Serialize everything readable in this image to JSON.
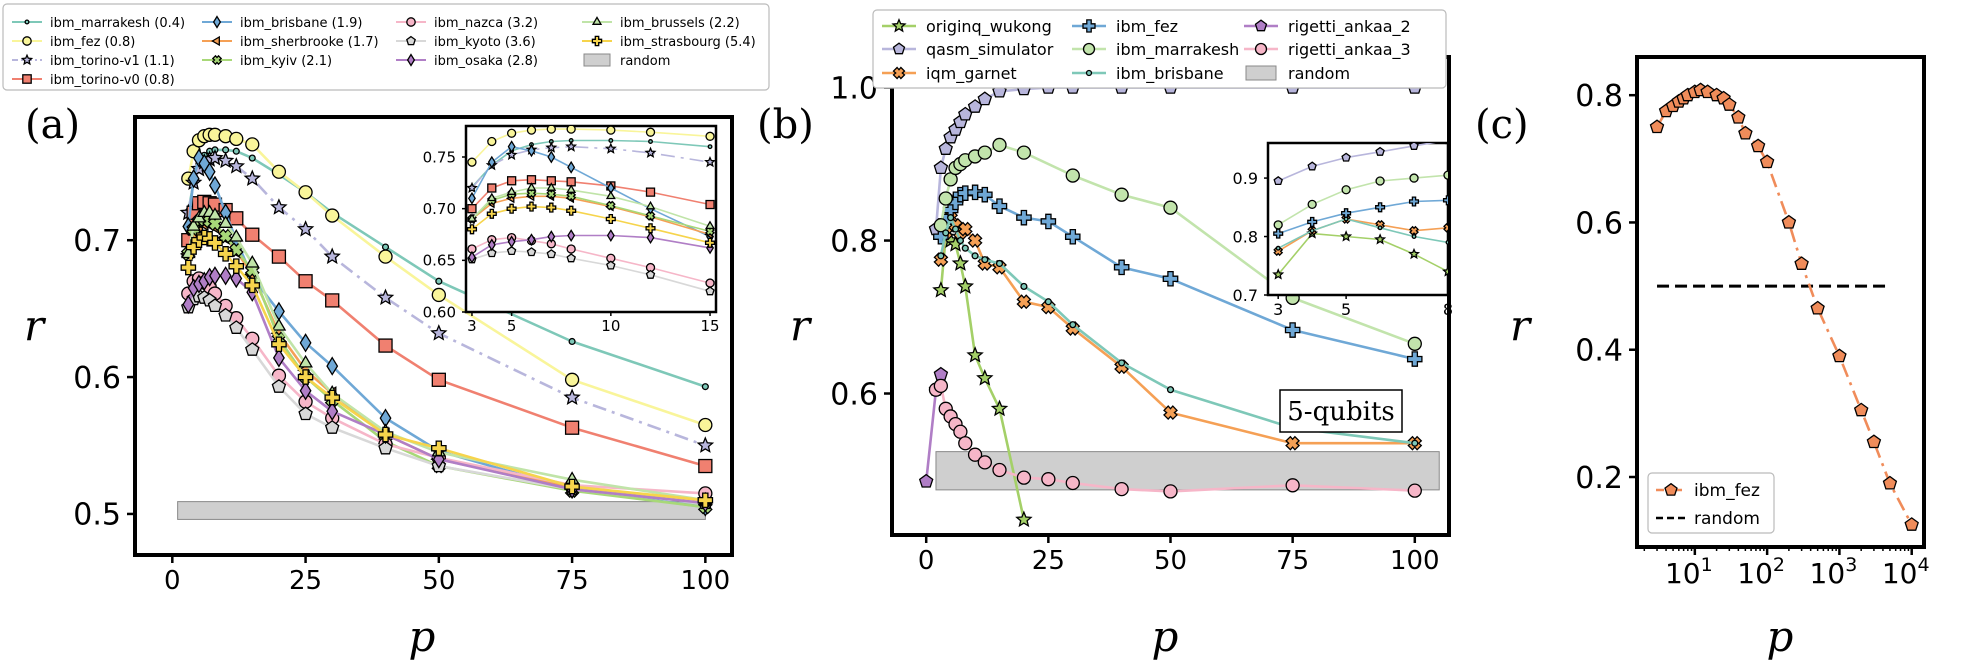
{
  "chart_data": [
    {
      "panel": "(a)",
      "type": "line",
      "xlabel": "p",
      "ylabel": "r",
      "xlim": [
        -7,
        105
      ],
      "ylim": [
        0.47,
        0.79
      ],
      "xticks": [
        "0",
        "25",
        "50",
        "75",
        "100"
      ],
      "yticks": [
        "0.5",
        "0.6",
        "0.7"
      ],
      "legend_position": "top-left (above panel)",
      "x": [
        3,
        4,
        5,
        6,
        7,
        8,
        10,
        12,
        15,
        20,
        25,
        30,
        40,
        50,
        75,
        100
      ],
      "series": [
        {
          "name": "ibm_marrakesh (0.4)",
          "color": "#7ec8b8",
          "marker": "smalldot",
          "dash": "solid",
          "values": [
            0.721,
            0.742,
            0.756,
            0.762,
            0.765,
            0.766,
            0.766,
            0.765,
            0.76,
            0.748,
            0.735,
            0.72,
            0.695,
            0.67,
            0.626,
            0.593
          ]
        },
        {
          "name": "ibm_fez (0.8)",
          "color": "#f9f59a",
          "marker": "circle",
          "dash": "solid",
          "values": [
            0.745,
            0.765,
            0.773,
            0.776,
            0.777,
            0.777,
            0.776,
            0.774,
            0.77,
            0.75,
            0.735,
            0.718,
            0.688,
            0.66,
            0.598,
            0.565
          ]
        },
        {
          "name": "ibm_torino-v1 (1.1)",
          "color": "#b8b6dc",
          "marker": "star",
          "dash": "dashdot",
          "values": [
            0.72,
            0.742,
            0.752,
            0.757,
            0.759,
            0.76,
            0.758,
            0.754,
            0.745,
            0.724,
            0.708,
            0.688,
            0.658,
            0.632,
            0.585,
            0.55
          ]
        },
        {
          "name": "ibm_torino-v0 (0.8)",
          "color": "#f08070",
          "marker": "square",
          "dash": "solid",
          "values": [
            0.7,
            0.72,
            0.727,
            0.728,
            0.727,
            0.726,
            0.722,
            0.716,
            0.704,
            0.688,
            0.67,
            0.656,
            0.623,
            0.598,
            0.563,
            0.535
          ]
        },
        {
          "name": "ibm_brisbane (1.9)",
          "color": "#6fa8d6",
          "marker": "diamond",
          "dash": "solid",
          "values": [
            0.71,
            0.745,
            0.76,
            0.756,
            0.75,
            0.74,
            0.72,
            0.7,
            0.673,
            0.648,
            0.625,
            0.608,
            0.57,
            0.546,
            0.518,
            0.505
          ]
        },
        {
          "name": "ibm_sherbrooke (1.7)",
          "color": "#f5a055",
          "marker": "triangle-left",
          "dash": "solid",
          "values": [
            0.69,
            0.705,
            0.71,
            0.712,
            0.712,
            0.71,
            0.702,
            0.692,
            0.675,
            0.632,
            0.605,
            0.588,
            0.558,
            0.54,
            0.519,
            0.51
          ]
        },
        {
          "name": "ibm_kyiv (2.1)",
          "color": "#a8d878",
          "marker": "xmark",
          "dash": "solid",
          "values": [
            0.69,
            0.708,
            0.714,
            0.715,
            0.714,
            0.712,
            0.703,
            0.693,
            0.678,
            0.628,
            0.6,
            0.583,
            0.553,
            0.535,
            0.517,
            0.505
          ]
        },
        {
          "name": "ibm_nazca (3.2)",
          "color": "#f6b6c8",
          "marker": "circle",
          "dash": "solid",
          "values": [
            0.661,
            0.67,
            0.672,
            0.669,
            0.666,
            0.661,
            0.652,
            0.643,
            0.628,
            0.601,
            0.582,
            0.57,
            0.551,
            0.541,
            0.521,
            0.515
          ]
        },
        {
          "name": "ibm_kyoto (3.6)",
          "color": "#d8d8d8",
          "marker": "pentagon",
          "dash": "solid",
          "values": [
            0.651,
            0.657,
            0.659,
            0.658,
            0.656,
            0.652,
            0.645,
            0.636,
            0.62,
            0.593,
            0.573,
            0.563,
            0.548,
            0.535,
            0.518,
            0.508
          ]
        },
        {
          "name": "ibm_osaka (2.8)",
          "color": "#b07ec6",
          "marker": "diamond",
          "dash": "solid",
          "values": [
            0.653,
            0.665,
            0.668,
            0.67,
            0.673,
            0.674,
            0.674,
            0.672,
            0.662,
            0.614,
            0.59,
            0.575,
            0.558,
            0.54,
            0.518,
            0.508
          ]
        },
        {
          "name": "ibm_brussels (2.2)",
          "color": "#c0e4a8",
          "marker": "triangle-up",
          "dash": "solid",
          "values": [
            0.69,
            0.71,
            0.716,
            0.72,
            0.72,
            0.718,
            0.712,
            0.702,
            0.683,
            0.637,
            0.61,
            0.588,
            0.56,
            0.545,
            0.525,
            0.51
          ]
        },
        {
          "name": "ibm_strasbourg (5.4)",
          "color": "#f6d44c",
          "marker": "plus",
          "dash": "solid",
          "values": [
            0.68,
            0.695,
            0.7,
            0.702,
            0.701,
            0.698,
            0.69,
            0.681,
            0.667,
            0.624,
            0.6,
            0.585,
            0.558,
            0.548,
            0.52,
            0.51
          ]
        }
      ],
      "random_band": {
        "label": "random",
        "x": [
          1,
          100
        ],
        "y": [
          0.496,
          0.509
        ]
      },
      "inset": {
        "xlim": [
          2.7,
          15.3
        ],
        "ylim": [
          0.6,
          0.78
        ],
        "xticks": [
          "3",
          "5",
          "10",
          "15"
        ],
        "yticks": [
          "0.60",
          "0.65",
          "0.70",
          "0.75"
        ]
      }
    },
    {
      "panel": "(b)",
      "type": "line",
      "xlabel": "p",
      "ylabel": "r",
      "xlim": [
        -7,
        107
      ],
      "ylim": [
        0.415,
        1.04
      ],
      "xticks": [
        "0",
        "25",
        "50",
        "75",
        "100"
      ],
      "yticks": [
        "0.6",
        "0.8",
        "1.0"
      ],
      "annotation": "5-qubits",
      "legend_position": "top (above panel)",
      "series": [
        {
          "name": "originq_wukong",
          "color": "#a4d068",
          "marker": "star",
          "x": [
            3,
            4,
            5,
            6,
            7,
            8,
            10,
            12,
            15,
            20
          ],
          "values": [
            0.735,
            0.805,
            0.8,
            0.795,
            0.77,
            0.74,
            0.65,
            0.62,
            0.58,
            0.435
          ]
        },
        {
          "name": "qasm_simulator",
          "color": "#b8b6dc",
          "marker": "pentagon",
          "x": [
            2,
            3,
            4,
            5,
            6,
            7,
            8,
            10,
            12,
            15,
            20,
            25,
            30,
            40,
            50,
            75,
            100
          ],
          "values": [
            0.815,
            0.895,
            0.92,
            0.935,
            0.945,
            0.955,
            0.965,
            0.975,
            0.985,
            0.995,
            0.998,
            1.0,
            1.0,
            1.0,
            1.0,
            1.0,
            1.0
          ]
        },
        {
          "name": "iqm_garnet",
          "color": "#f5a055",
          "marker": "xmark",
          "x": [
            3,
            4,
            5,
            6,
            7,
            8,
            10,
            12,
            15,
            20,
            25,
            30,
            40,
            50,
            75,
            100
          ],
          "values": [
            0.775,
            0.81,
            0.83,
            0.82,
            0.81,
            0.815,
            0.8,
            0.77,
            0.765,
            0.72,
            0.713,
            0.685,
            0.635,
            0.575,
            0.535,
            0.535
          ]
        },
        {
          "name": "ibm_fez",
          "color": "#6fa8d6",
          "marker": "plus",
          "x": [
            3,
            4,
            5,
            6,
            7,
            8,
            10,
            12,
            15,
            20,
            25,
            30,
            40,
            50,
            75,
            100
          ],
          "values": [
            0.805,
            0.825,
            0.84,
            0.85,
            0.86,
            0.862,
            0.863,
            0.86,
            0.845,
            0.83,
            0.825,
            0.805,
            0.765,
            0.75,
            0.683,
            0.645
          ]
        },
        {
          "name": "ibm_marrakesh",
          "color": "#c2e4ac",
          "marker": "circle",
          "x": [
            3,
            4,
            5,
            6,
            7,
            8,
            10,
            12,
            15,
            20,
            30,
            40,
            50,
            75,
            100
          ],
          "values": [
            0.82,
            0.855,
            0.88,
            0.895,
            0.9,
            0.905,
            0.91,
            0.915,
            0.925,
            0.915,
            0.885,
            0.86,
            0.843,
            0.725,
            0.665
          ]
        },
        {
          "name": "ibm_brisbane",
          "color": "#7ec8b8",
          "marker": "smalldot",
          "x": [
            3,
            4,
            5,
            6,
            7,
            8,
            10,
            12,
            15,
            20,
            25,
            30,
            40,
            50,
            75,
            100
          ],
          "values": [
            0.78,
            0.81,
            0.83,
            0.815,
            0.8,
            0.79,
            0.78,
            0.775,
            0.77,
            0.74,
            0.72,
            0.69,
            0.64,
            0.605,
            0.555,
            0.535
          ]
        },
        {
          "name": "rigetti_ankaa_2",
          "color": "#b07ec6",
          "marker": "pentagon",
          "x": [
            0,
            2,
            3
          ],
          "values": [
            0.485,
            0.605,
            0.625
          ]
        },
        {
          "name": "rigetti_ankaa_3",
          "color": "#f6b6c8",
          "marker": "circle",
          "x": [
            2,
            3,
            4,
            5,
            6,
            7,
            8,
            10,
            12,
            15,
            20,
            25,
            30,
            40,
            50,
            75,
            100
          ],
          "values": [
            0.605,
            0.61,
            0.58,
            0.57,
            0.56,
            0.55,
            0.535,
            0.52,
            0.51,
            0.5,
            0.49,
            0.488,
            0.483,
            0.475,
            0.472,
            0.48,
            0.473
          ]
        }
      ],
      "random_band": {
        "label": "random",
        "x": [
          2,
          105
        ],
        "y": [
          0.474,
          0.524
        ]
      },
      "inset": {
        "xlim": [
          2.7,
          8
        ],
        "ylim": [
          0.7,
          0.96
        ],
        "xticks": [
          "3",
          "5",
          "8"
        ],
        "yticks": [
          "0.7",
          "0.8",
          "0.9"
        ]
      }
    },
    {
      "panel": "(c)",
      "type": "line",
      "xscale": "log",
      "xlabel": "p",
      "ylabel": "r",
      "xlim_log10": [
        0.2,
        4.17
      ],
      "ylim": [
        0.09,
        0.86
      ],
      "xticks": [
        "10^1",
        "10^2",
        "10^3",
        "10^4"
      ],
      "yticks": [
        "0.2",
        "0.4",
        "0.6",
        "0.8"
      ],
      "legend_position": "bottom-left",
      "series": [
        {
          "name": "ibm_fez",
          "color": "#f08c5a",
          "marker": "pentagon",
          "dash": "dashdot",
          "x": [
            3,
            4,
            5,
            6,
            7,
            8,
            10,
            12,
            15,
            20,
            25,
            30,
            40,
            50,
            75,
            100,
            200,
            300,
            500,
            1000,
            2000,
            3000,
            5000,
            10000
          ],
          "values": [
            0.75,
            0.775,
            0.783,
            0.79,
            0.795,
            0.8,
            0.805,
            0.808,
            0.805,
            0.8,
            0.795,
            0.785,
            0.765,
            0.74,
            0.72,
            0.695,
            0.6,
            0.535,
            0.465,
            0.39,
            0.305,
            0.255,
            0.19,
            0.125
          ]
        }
      ],
      "random_line": {
        "label": "random",
        "value": 0.5,
        "x": [
          3,
          5000
        ]
      }
    }
  ]
}
